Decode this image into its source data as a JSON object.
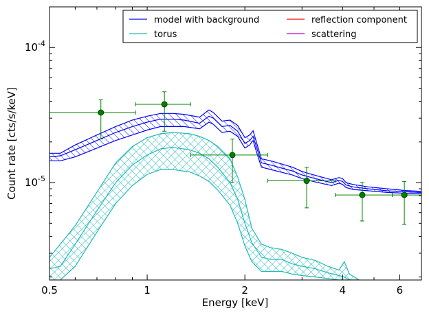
{
  "chart_data": {
    "type": "line",
    "xlabel": "Energy [keV]",
    "ylabel": "Count rate [cts/s/keV]",
    "x_scale": "log",
    "y_scale": "log",
    "xlim": [
      0.5,
      7.0
    ],
    "ylim": [
      1.9e-06,
      0.0002
    ],
    "x_ticks": [
      {
        "value": 0.5,
        "label": "0.5"
      },
      {
        "value": 1,
        "label": "1"
      },
      {
        "value": 2,
        "label": "2"
      },
      {
        "value": 4,
        "label": "4"
      },
      {
        "value": 6,
        "label": "6"
      }
    ],
    "y_ticks": [
      {
        "value": 0.0001,
        "base": "10",
        "exp": "-4"
      },
      {
        "value": 1e-05,
        "base": "10",
        "exp": "-5"
      }
    ],
    "legend": {
      "placement": "top-right",
      "entries": [
        {
          "label": "model with background",
          "color": "#0000ff"
        },
        {
          "label": "torus",
          "color": "#20b8b8"
        },
        {
          "label": "reflection component",
          "color": "#ff0000"
        },
        {
          "label": "scattering",
          "color": "#bf00bf"
        }
      ]
    },
    "series": [
      {
        "name": "model with background",
        "color": "#0000ff",
        "hatch": "diagonal",
        "x": [
          0.5,
          0.54,
          0.6,
          0.7,
          0.8,
          0.9,
          1.0,
          1.1,
          1.2,
          1.3,
          1.45,
          1.55,
          1.6,
          1.7,
          1.8,
          1.9,
          2.0,
          2.07,
          2.12,
          2.17,
          2.25,
          2.4,
          2.6,
          2.8,
          3.0,
          3.3,
          3.7,
          3.9,
          4.0,
          4.1,
          4.3,
          4.8,
          5.5,
          6.2,
          7.0
        ],
        "middle": [
          1.55e-05,
          1.58e-05,
          1.75e-05,
          2.05e-05,
          2.35e-05,
          2.6e-05,
          2.8e-05,
          2.95e-05,
          2.95e-05,
          2.9e-05,
          2.75e-05,
          3.1e-05,
          3e-05,
          2.6e-05,
          2.65e-05,
          2.4e-05,
          1.95e-05,
          2.05e-05,
          2.2e-05,
          1.85e-05,
          1.4e-05,
          1.35e-05,
          1.28e-05,
          1.22e-05,
          1.14e-05,
          1.07e-05,
          1e-05,
          1.04e-05,
          1.02e-05,
          9.6e-06,
          9.3e-06,
          9e-06,
          8.7e-06,
          8.55e-06,
          8.45e-06
        ],
        "upper": [
          1.65e-05,
          1.65e-05,
          1.9e-05,
          2.25e-05,
          2.6e-05,
          2.9e-05,
          3.1e-05,
          3.25e-05,
          3.25e-05,
          3.2e-05,
          3.05e-05,
          3.45e-05,
          3.3e-05,
          2.85e-05,
          2.9e-05,
          2.65e-05,
          2.15e-05,
          2.25e-05,
          2.42e-05,
          2e-05,
          1.5e-05,
          1.45e-05,
          1.37e-05,
          1.3e-05,
          1.21e-05,
          1.13e-05,
          1.05e-05,
          1.09e-05,
          1.07e-05,
          1e-05,
          9.7e-06,
          9.3e-06,
          9e-06,
          8.75e-06,
          8.6e-06
        ],
        "lower": [
          1.45e-05,
          1.45e-05,
          1.55e-05,
          1.8e-05,
          2.05e-05,
          2.25e-05,
          2.45e-05,
          2.6e-05,
          2.6e-05,
          2.6e-05,
          2.5e-05,
          2.8e-05,
          2.7e-05,
          2.35e-05,
          2.4e-05,
          2.2e-05,
          1.8e-05,
          1.9e-05,
          2.05e-05,
          1.7e-05,
          1.3e-05,
          1.25e-05,
          1.19e-05,
          1.14e-05,
          1.07e-05,
          1.01e-05,
          9.5e-06,
          9.9e-06,
          9.7e-06,
          9.2e-06,
          8.9e-06,
          8.7e-06,
          8.45e-06,
          8.35e-06,
          8.3e-06
        ]
      },
      {
        "name": "torus",
        "color": "#20b8b8",
        "hatch": "cross",
        "x": [
          0.5,
          0.54,
          0.6,
          0.7,
          0.8,
          0.9,
          1.0,
          1.1,
          1.2,
          1.35,
          1.45,
          1.55,
          1.65,
          1.8,
          1.9,
          2.0,
          2.1,
          2.25,
          2.4,
          2.6,
          2.8,
          3.0,
          3.3,
          3.6,
          3.9,
          4.05,
          4.2,
          4.5
        ],
        "middle": [
          2.3e-06,
          2.4e-06,
          3.5e-06,
          6.2e-06,
          1e-05,
          1.35e-05,
          1.6e-05,
          1.78e-05,
          1.82e-05,
          1.75e-05,
          1.65e-05,
          1.5e-05,
          1.3e-05,
          1e-05,
          7.5e-06,
          5e-06,
          3.6e-06,
          2.8e-06,
          2.7e-06,
          2.7e-06,
          2.5e-06,
          2.4e-06,
          2.3e-06,
          2.15e-06,
          2.05e-06,
          2e-06,
          1.9e-06,
          1.9e-06
        ],
        "upper": [
          2.8e-06,
          3.5e-06,
          4.8e-06,
          8.5e-06,
          1.4e-05,
          1.85e-05,
          2.15e-05,
          2.3e-05,
          2.35e-05,
          2.3e-05,
          2.2e-05,
          2.05e-05,
          1.85e-05,
          1.5e-05,
          1.1e-05,
          7.5e-06,
          4.6e-06,
          3.5e-06,
          3.3e-06,
          3.2e-06,
          3e-06,
          2.8e-06,
          2.65e-06,
          2.4e-06,
          2.25e-06,
          2.6e-06,
          2.1e-06,
          1.9e-06
        ],
        "lower": [
          1.9e-06,
          1.9e-06,
          2.4e-06,
          4.3e-06,
          7e-06,
          9.5e-06,
          1.15e-05,
          1.25e-05,
          1.25e-05,
          1.2e-05,
          1.12e-05,
          1.02e-05,
          8.8e-06,
          6.8e-06,
          5e-06,
          3.4e-06,
          2.6e-06,
          2.2e-06,
          2.2e-06,
          2.2e-06,
          2.1e-06,
          2.05e-06,
          2e-06,
          1.95e-06,
          1.9e-06,
          1.9e-06,
          1.9e-06,
          1.9e-06
        ]
      }
    ],
    "data_points": {
      "color": "#008000",
      "points": [
        {
          "x": 0.72,
          "y": 3.3e-05,
          "xerr": [
            0.5,
            0.92
          ],
          "yerr": [
            2.1e-05,
            4.1e-05
          ]
        },
        {
          "x": 1.13,
          "y": 3.8e-05,
          "xerr": [
            0.92,
            1.36
          ],
          "yerr": [
            2.4e-05,
            4.7e-05
          ]
        },
        {
          "x": 1.83,
          "y": 1.6e-05,
          "xerr": [
            1.36,
            2.35
          ],
          "yerr": [
            1e-05,
            2.1e-05
          ]
        },
        {
          "x": 3.1,
          "y": 1.03e-05,
          "xerr": [
            2.35,
            3.8
          ],
          "yerr": [
            6.5e-06,
            1.3e-05
          ]
        },
        {
          "x": 4.6,
          "y": 8.1e-06,
          "xerr": [
            3.8,
            5.7
          ],
          "yerr": [
            5.2e-06,
            1e-05
          ]
        },
        {
          "x": 6.2,
          "y": 8.1e-06,
          "xerr": [
            5.7,
            7.0
          ],
          "yerr": [
            4.9e-06,
            1.02e-05
          ]
        }
      ]
    }
  }
}
